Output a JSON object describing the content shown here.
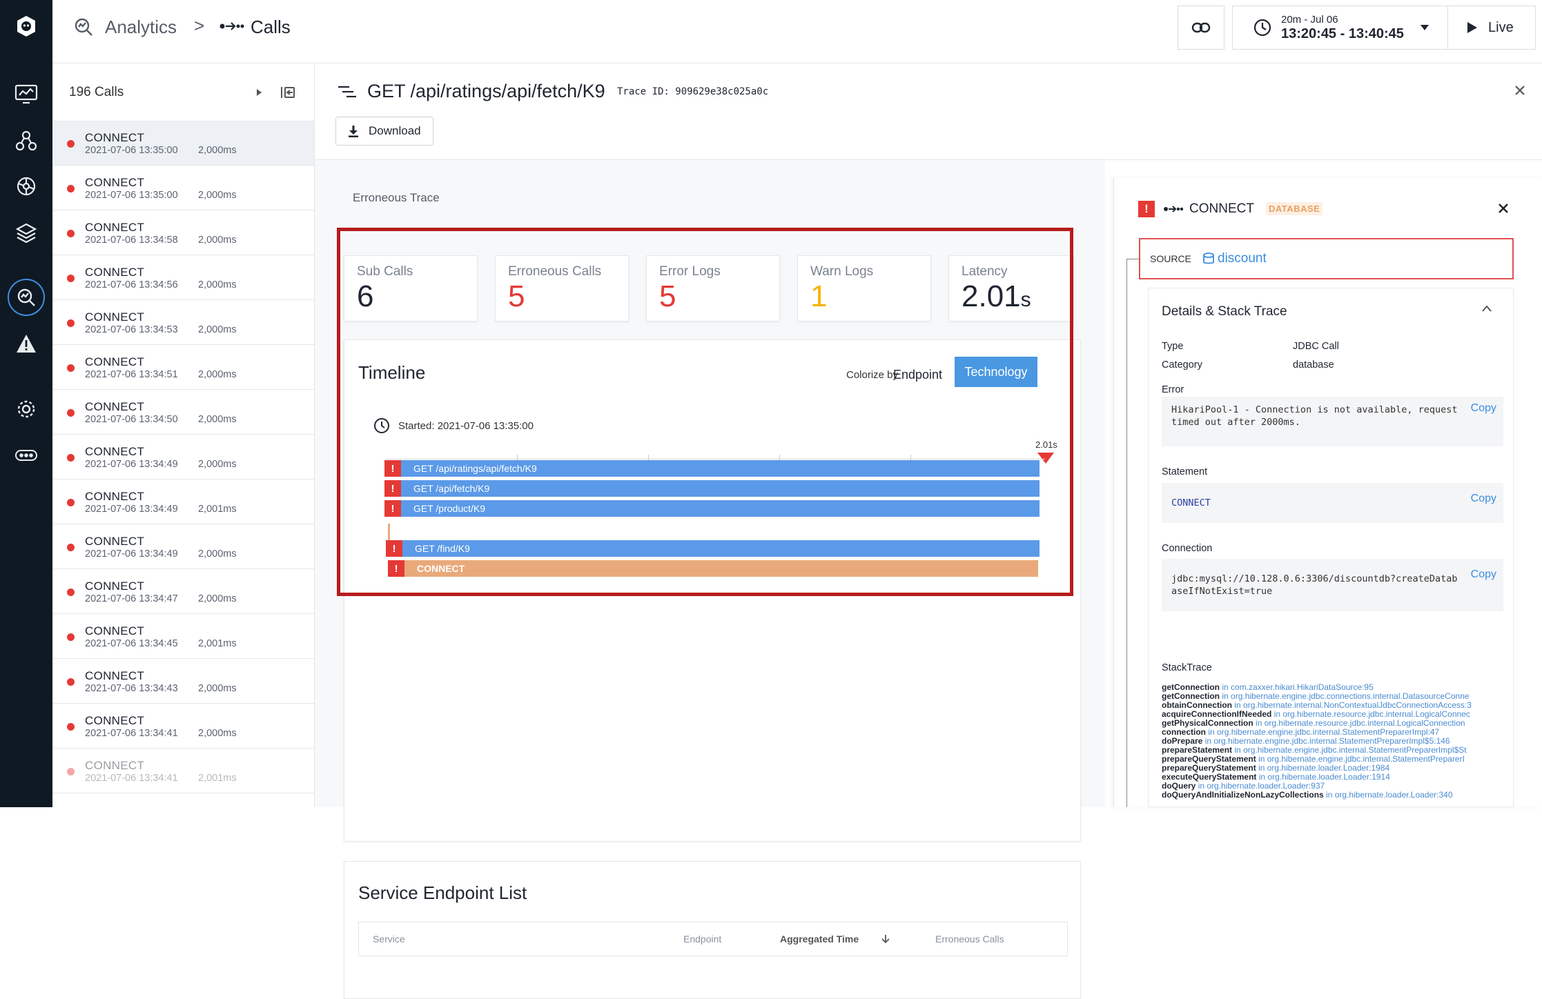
{
  "topbar": {
    "breadcrumb_root": "Analytics",
    "breadcrumb_sep": ">",
    "breadcrumb_current": "Calls",
    "time_range_label": "20m - Jul 06",
    "time_range_value": "13:20:45 - 13:40:45",
    "live_label": "Live"
  },
  "list": {
    "count_label": "196 Calls",
    "items": [
      {
        "name": "CONNECT",
        "time": "2021-07-06 13:35:00",
        "dur": "2,000ms"
      },
      {
        "name": "CONNECT",
        "time": "2021-07-06 13:35:00",
        "dur": "2,000ms"
      },
      {
        "name": "CONNECT",
        "time": "2021-07-06 13:34:58",
        "dur": "2,000ms"
      },
      {
        "name": "CONNECT",
        "time": "2021-07-06 13:34:56",
        "dur": "2,000ms"
      },
      {
        "name": "CONNECT",
        "time": "2021-07-06 13:34:53",
        "dur": "2,000ms"
      },
      {
        "name": "CONNECT",
        "time": "2021-07-06 13:34:51",
        "dur": "2,000ms"
      },
      {
        "name": "CONNECT",
        "time": "2021-07-06 13:34:50",
        "dur": "2,000ms"
      },
      {
        "name": "CONNECT",
        "time": "2021-07-06 13:34:49",
        "dur": "2,000ms"
      },
      {
        "name": "CONNECT",
        "time": "2021-07-06 13:34:49",
        "dur": "2,001ms"
      },
      {
        "name": "CONNECT",
        "time": "2021-07-06 13:34:49",
        "dur": "2,000ms"
      },
      {
        "name": "CONNECT",
        "time": "2021-07-06 13:34:47",
        "dur": "2,000ms"
      },
      {
        "name": "CONNECT",
        "time": "2021-07-06 13:34:45",
        "dur": "2,001ms"
      },
      {
        "name": "CONNECT",
        "time": "2021-07-06 13:34:43",
        "dur": "2,000ms"
      },
      {
        "name": "CONNECT",
        "time": "2021-07-06 13:34:41",
        "dur": "2,000ms"
      },
      {
        "name": "CONNECT",
        "time": "2021-07-06 13:34:41",
        "dur": "2,001ms"
      }
    ]
  },
  "trace": {
    "title": "GET /api/ratings/api/fetch/K9",
    "trace_id_label": "Trace ID: 909629e38c025a0c",
    "download_label": "Download",
    "section_label": "Erroneous Trace"
  },
  "stats": [
    {
      "label": "Sub Calls",
      "value": "6",
      "unit": "",
      "color": "#1f2530"
    },
    {
      "label": "Erroneous Calls",
      "value": "5",
      "unit": "",
      "color": "#e53935"
    },
    {
      "label": "Error Logs",
      "value": "5",
      "unit": "",
      "color": "#e53935"
    },
    {
      "label": "Warn Logs",
      "value": "1",
      "unit": "",
      "color": "#f5b400"
    },
    {
      "label": "Latency",
      "value": "2.01",
      "unit": "s",
      "color": "#1f2530"
    }
  ],
  "timeline": {
    "title": "Timeline",
    "colorize_label": "Colorize by",
    "opt_endpoint": "Endpoint",
    "opt_technology": "Technology",
    "started": "Started: 2021-07-06 13:35:00",
    "end_label": "2.01s",
    "bars": [
      {
        "label": "GET /api/ratings/api/fetch/K9",
        "color": "#5b9ae8"
      },
      {
        "label": "GET /api/fetch/K9",
        "color": "#5b9ae8"
      },
      {
        "label": "GET /product/K9",
        "color": "#5b9ae8"
      },
      {
        "label": "GET /find/K9",
        "color": "#5b9ae8"
      },
      {
        "label": "CONNECT",
        "color": "#e9a97a"
      }
    ]
  },
  "endpoints": {
    "title": "Service Endpoint List",
    "cols": [
      "Service",
      "Endpoint",
      "Aggregated Time",
      "Erroneous Calls"
    ]
  },
  "detail": {
    "name": "CONNECT",
    "tag": "DATABASE",
    "source_label": "SOURCE",
    "source_value": "discount",
    "section": "Details & Stack Trace",
    "type_k": "Type",
    "type_v": "JDBC Call",
    "cat_k": "Category",
    "cat_v": "database",
    "error_k": "Error",
    "error_v": "HikariPool-1 - Connection is not available, request timed out after 2000ms.",
    "stmt_k": "Statement",
    "stmt_v": "CONNECT",
    "conn_k": "Connection",
    "conn_v": "jdbc:mysql://10.128.0.6:3306/discountdb?createDatabaseIfNotExist=true",
    "copy": "Copy",
    "stack_k": "StackTrace",
    "stack": [
      {
        "m": "getConnection",
        "c": "in com.zaxxer.hikari.HikariDataSource:95"
      },
      {
        "m": "getConnection",
        "c": "in org.hibernate.engine.jdbc.connections.internal.DatasourceConne"
      },
      {
        "m": "obtainConnection",
        "c": "in org.hibernate.internal.NonContextualJdbcConnectionAccess:3"
      },
      {
        "m": "acquireConnectionIfNeeded",
        "c": "in org.hibernate.resource.jdbc.internal.LogicalConnec"
      },
      {
        "m": "getPhysicalConnection",
        "c": "in org.hibernate.resource.jdbc.internal.LogicalConnection"
      },
      {
        "m": "connection",
        "c": "in org.hibernate.engine.jdbc.internal.StatementPreparerImpl:47"
      },
      {
        "m": "doPrepare",
        "c": "in org.hibernate.engine.jdbc.internal.StatementPreparerImpl$5:146"
      },
      {
        "m": "prepareStatement",
        "c": "in org.hibernate.engine.jdbc.internal.StatementPreparerImpl$St"
      },
      {
        "m": "prepareQueryStatement",
        "c": "in org.hibernate.engine.jdbc.internal.StatementPreparerI"
      },
      {
        "m": "prepareQueryStatement",
        "c": "in org.hibernate.loader.Loader:1984"
      },
      {
        "m": "executeQueryStatement",
        "c": "in org.hibernate.loader.Loader:1914"
      },
      {
        "m": "doQuery",
        "c": "in org.hibernate.loader.Loader:937"
      },
      {
        "m": "doQueryAndInitializeNonLazyCollections",
        "c": "in org.hibernate.loader.Loader:340"
      }
    ]
  }
}
